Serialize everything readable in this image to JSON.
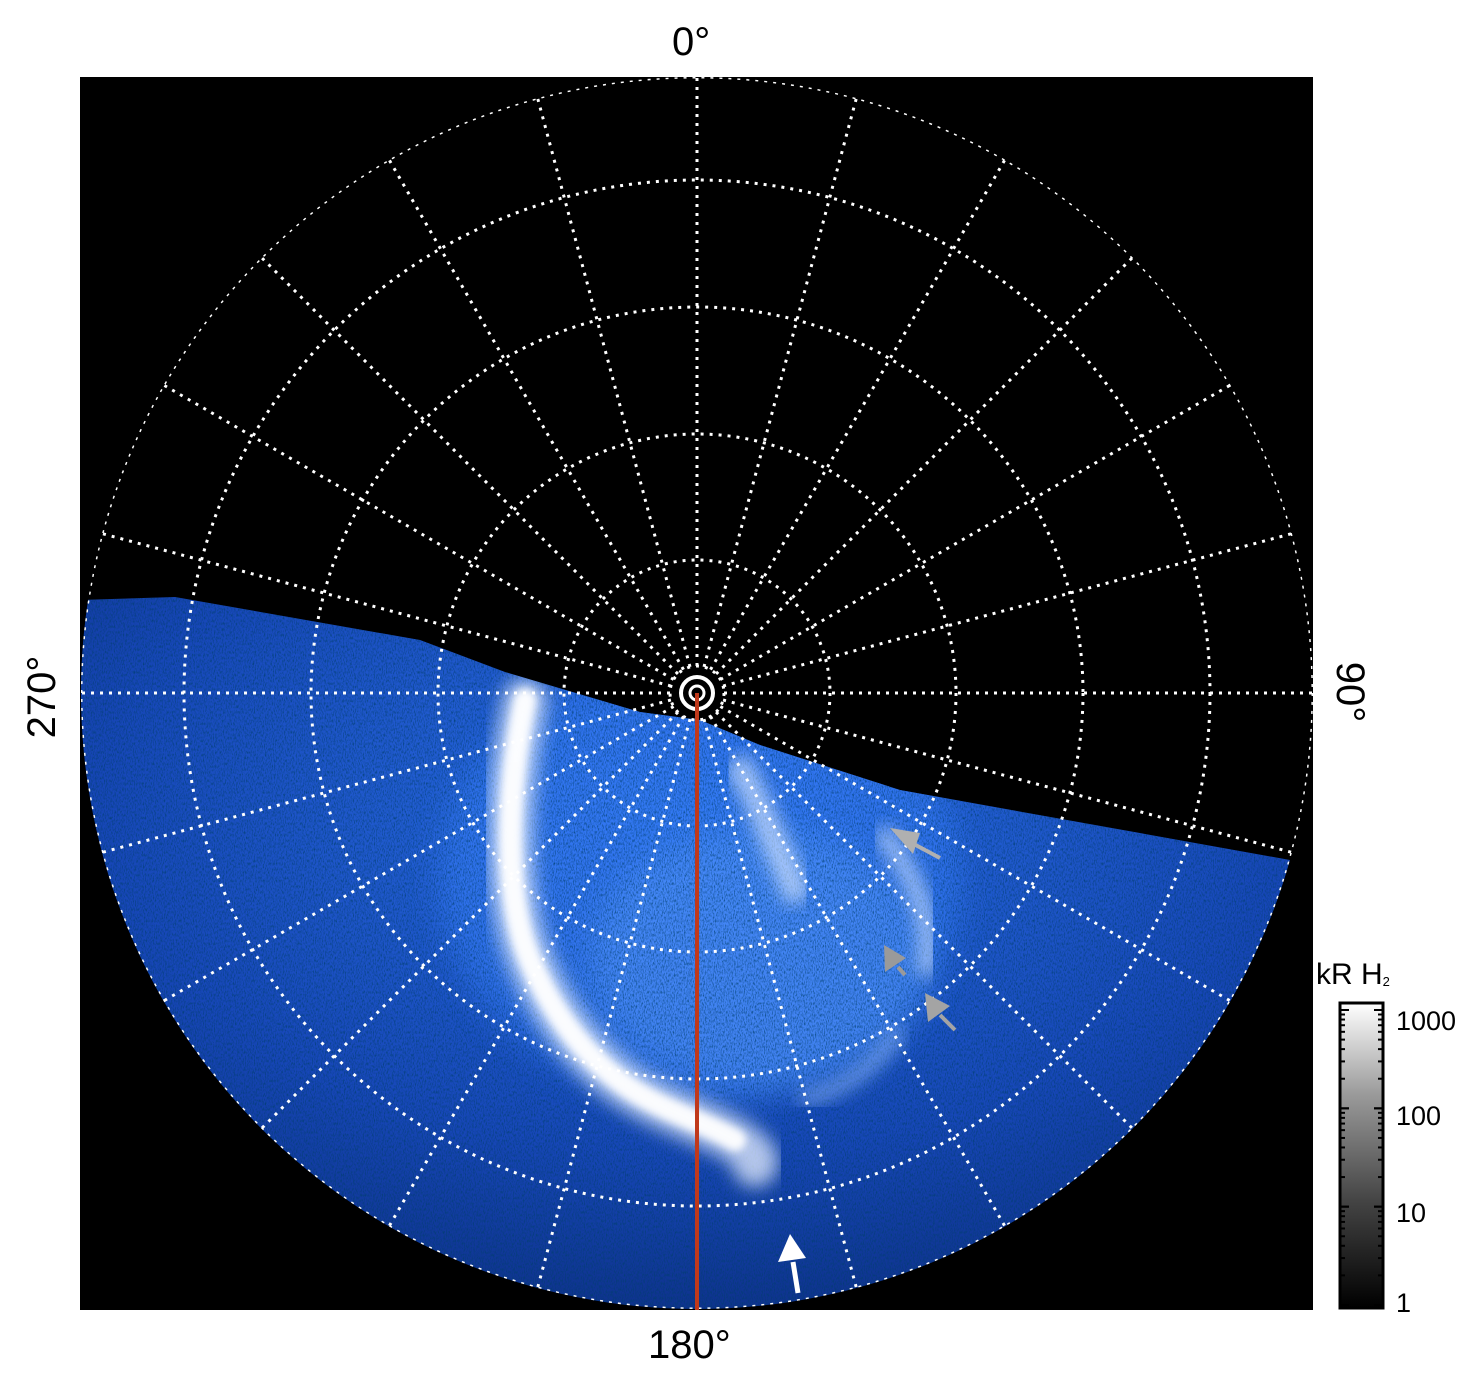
{
  "angle_labels": {
    "top": "0°",
    "bottom": "180°",
    "left": "270°",
    "right": "90°"
  },
  "colorbar": {
    "title_main": "kR H",
    "title_sub": "2",
    "ticks": [
      "1000",
      "100",
      "10",
      "1"
    ]
  },
  "colors": {
    "background": "#000000",
    "grid": "#ffffff",
    "meridian": "#c0391b",
    "aurora_bright": "#f2f6ff",
    "aurora_mid": "#3f86ff",
    "aurora_dim": "#0d3fb0",
    "arrow_white": "#ffffff",
    "arrow_grey": "#a8a8a8"
  },
  "markers": [
    {
      "name": "white-arrow",
      "color": "white"
    },
    {
      "name": "grey-arrow-1",
      "color": "grey"
    },
    {
      "name": "grey-arrow-2",
      "color": "grey"
    },
    {
      "name": "grey-arrow-3",
      "color": "grey"
    }
  ]
}
